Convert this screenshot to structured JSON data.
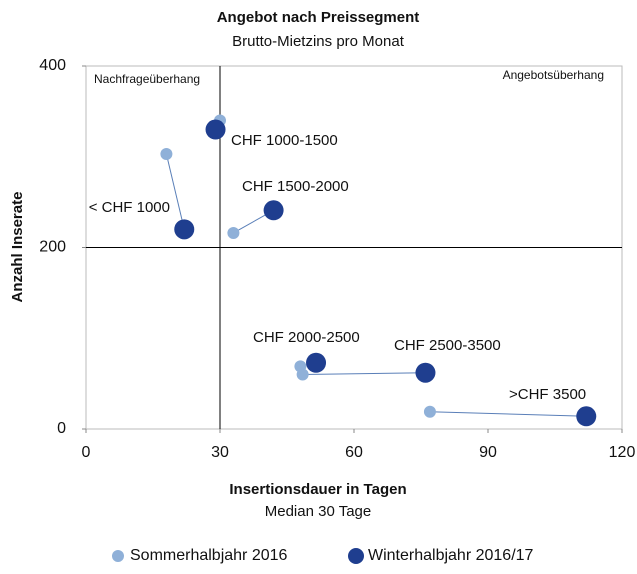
{
  "chart_data": {
    "type": "scatter",
    "title": "Angebot nach Preissegment",
    "subtitle": "Brutto-Mietzins pro Monat",
    "xlabel": "Insertionsdauer in Tagen",
    "xlabel_note": "Median 30 Tage",
    "ylabel": "Anzahl Inserate",
    "annotations": [
      "Nachfrageüberhang",
      "Angebotsüberhang"
    ],
    "categories": [
      "< CHF 1000",
      "CHF 1000-1500",
      "CHF 1500-2000",
      "CHF 2000-2500",
      "CHF 2500-3500",
      ">CHF 3500"
    ],
    "series": [
      {
        "name": "Sommerhalbjahr 2016",
        "color": "#8fb0d8",
        "x": [
          18,
          30,
          33,
          48,
          48.5,
          77
        ],
        "values": [
          303,
          340,
          216,
          69,
          60,
          19
        ]
      },
      {
        "name": "Winterhalbjahr 2016/17",
        "color": "#1f3e8f",
        "x": [
          22,
          29,
          42,
          51.5,
          76,
          112
        ],
        "values": [
          220,
          330,
          241,
          73,
          62,
          14
        ]
      }
    ],
    "reference_lines": {
      "x": 30,
      "y": 200
    },
    "xlim": [
      0,
      120
    ],
    "xticks": [
      0,
      30,
      60,
      90,
      120
    ],
    "ylim": [
      0,
      400
    ],
    "yticks": [
      0,
      200,
      400
    ],
    "legend": "bottom"
  }
}
